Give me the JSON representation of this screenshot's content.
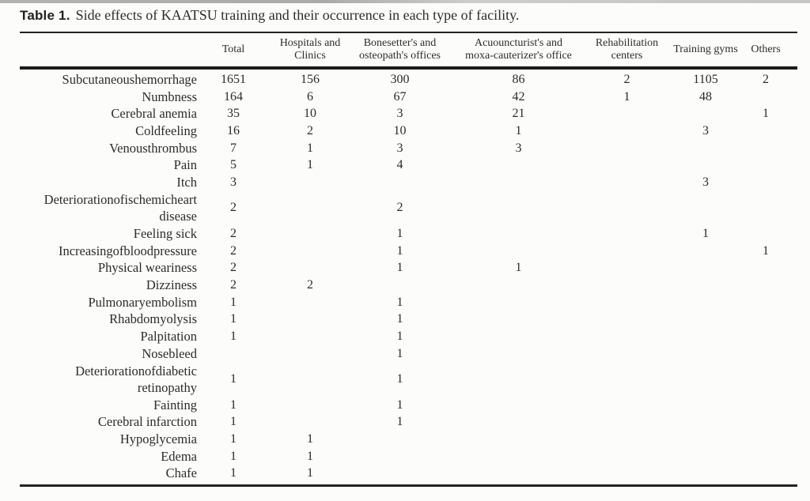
{
  "page": {
    "background": "#fcfcfa",
    "text_color": "#2b2b2b",
    "rule_color": "#242424"
  },
  "title": {
    "label": "Table 1.",
    "caption": "Side effects of KAATSU training and their occurrence in each type of facility."
  },
  "table": {
    "columns": [
      "Total",
      "Hospitals and\nClinics",
      "Bonesetter's and\nosteopath's offices",
      "Acuouncturist's and\nmoxa-cauterizer's office",
      "Rehabilitation\ncenters",
      "Training gyms",
      "Others"
    ],
    "rows": [
      {
        "label": "Subcutaneoushemorrhage",
        "values": [
          "1651",
          "156",
          "300",
          "86",
          "2",
          "1105",
          "2"
        ]
      },
      {
        "label": "Numbness",
        "values": [
          "164",
          "6",
          "67",
          "42",
          "1",
          "48",
          ""
        ]
      },
      {
        "label": "Cerebral anemia",
        "values": [
          "35",
          "10",
          "3",
          "21",
          "",
          "",
          "1"
        ]
      },
      {
        "label": "Coldfeeling",
        "values": [
          "16",
          "2",
          "10",
          "1",
          "",
          "3",
          ""
        ]
      },
      {
        "label": "Venousthrombus",
        "values": [
          "7",
          "1",
          "3",
          "3",
          "",
          "",
          ""
        ]
      },
      {
        "label": "Pain",
        "values": [
          "5",
          "1",
          "4",
          "",
          "",
          "",
          ""
        ]
      },
      {
        "label": "Itch",
        "values": [
          "3",
          "",
          "",
          "",
          "",
          "3",
          ""
        ]
      },
      {
        "label": "Deteriorationofischemicheart disease",
        "values": [
          "2",
          "",
          "2",
          "",
          "",
          "",
          ""
        ]
      },
      {
        "label": "Feeling sick",
        "values": [
          "2",
          "",
          "1",
          "",
          "",
          "1",
          ""
        ]
      },
      {
        "label": "Increasingofbloodpressure",
        "values": [
          "2",
          "",
          "1",
          "",
          "",
          "",
          "1"
        ]
      },
      {
        "label": "Physical weariness",
        "values": [
          "2",
          "",
          "1",
          "1",
          "",
          "",
          ""
        ]
      },
      {
        "label": "Dizziness",
        "values": [
          "2",
          "2",
          "",
          "",
          "",
          "",
          ""
        ]
      },
      {
        "label": "Pulmonaryembolism",
        "values": [
          "1",
          "",
          "1",
          "",
          "",
          "",
          ""
        ]
      },
      {
        "label": "Rhabdomyolysis",
        "values": [
          "1",
          "",
          "1",
          "",
          "",
          "",
          ""
        ]
      },
      {
        "label": "Palpitation",
        "values": [
          "1",
          "",
          "1",
          "",
          "",
          "",
          ""
        ]
      },
      {
        "label": "Nosebleed",
        "values": [
          "",
          "",
          "1",
          "",
          "",
          "",
          ""
        ]
      },
      {
        "label": "Deteriorationofdiabetic retinopathy",
        "values": [
          "1",
          "",
          "1",
          "",
          "",
          "",
          ""
        ]
      },
      {
        "label": "Fainting",
        "values": [
          "1",
          "",
          "1",
          "",
          "",
          "",
          ""
        ]
      },
      {
        "label": "Cerebral infarction",
        "values": [
          "1",
          "",
          "1",
          "",
          "",
          "",
          ""
        ]
      },
      {
        "label": "Hypoglycemia",
        "values": [
          "1",
          "1",
          "",
          "",
          "",
          "",
          ""
        ]
      },
      {
        "label": "Edema",
        "values": [
          "1",
          "1",
          "",
          "",
          "",
          "",
          ""
        ]
      },
      {
        "label": "Chafe",
        "values": [
          "1",
          "1",
          "",
          "",
          "",
          "",
          ""
        ]
      }
    ]
  }
}
